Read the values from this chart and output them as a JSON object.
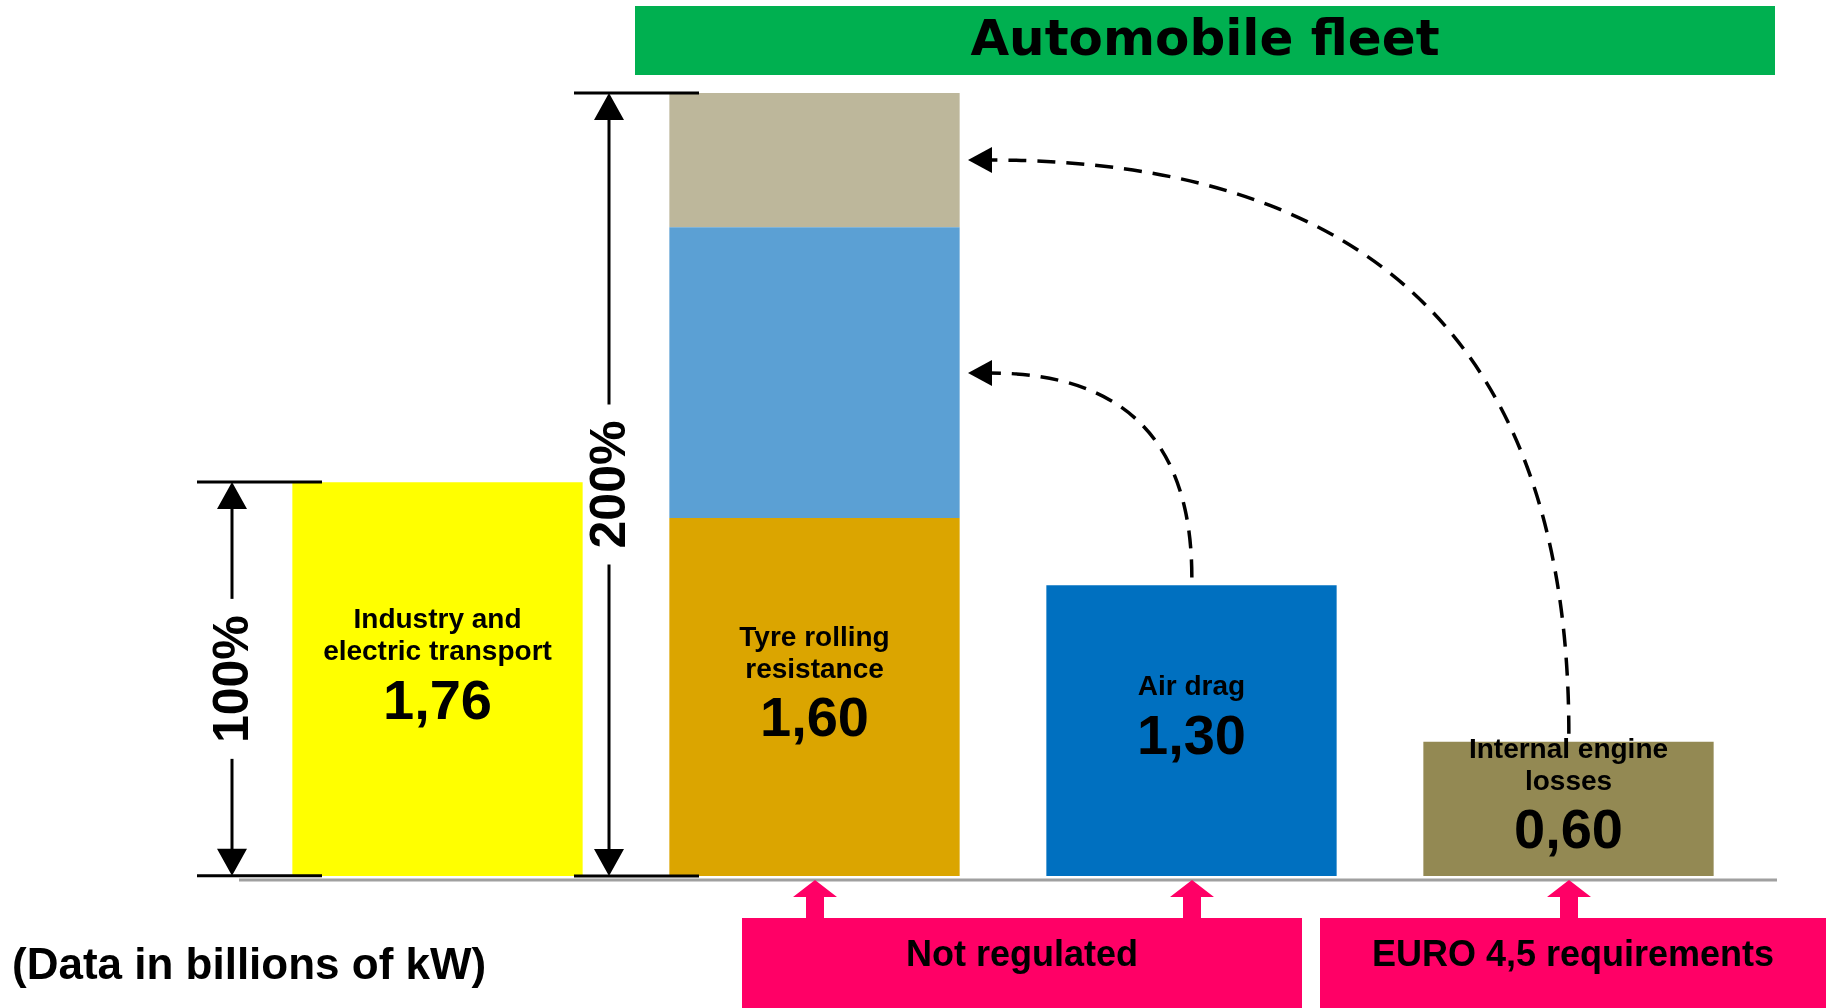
{
  "chart_data": {
    "type": "bar",
    "stacked": true,
    "title": "Automobile fleet",
    "categories": [
      "Industry and electric transport",
      "Tyre rolling resistance",
      "Air drag",
      "Internal engine losses"
    ],
    "series": [
      {
        "colors": [
          "#ffff00",
          "#dba500",
          "#0070c0",
          "#938953"
        ],
        "values": [
          1.76,
          1.6,
          1.3,
          0.6
        ],
        "value_labels": [
          "1,76",
          "1,60",
          "1,30",
          "0,60"
        ]
      },
      {
        "color": "#5ba0d4",
        "values": [
          null,
          1.3,
          null,
          null
        ]
      },
      {
        "color": "#bdb79b",
        "values": [
          null,
          0.6,
          null,
          null
        ]
      }
    ],
    "ylim": [
      0,
      3.5
    ],
    "annotations": [
      "100%",
      "200%",
      "Not regulated",
      "EURO 4,5 requirements",
      "(Data in billions of kW)"
    ]
  }
}
